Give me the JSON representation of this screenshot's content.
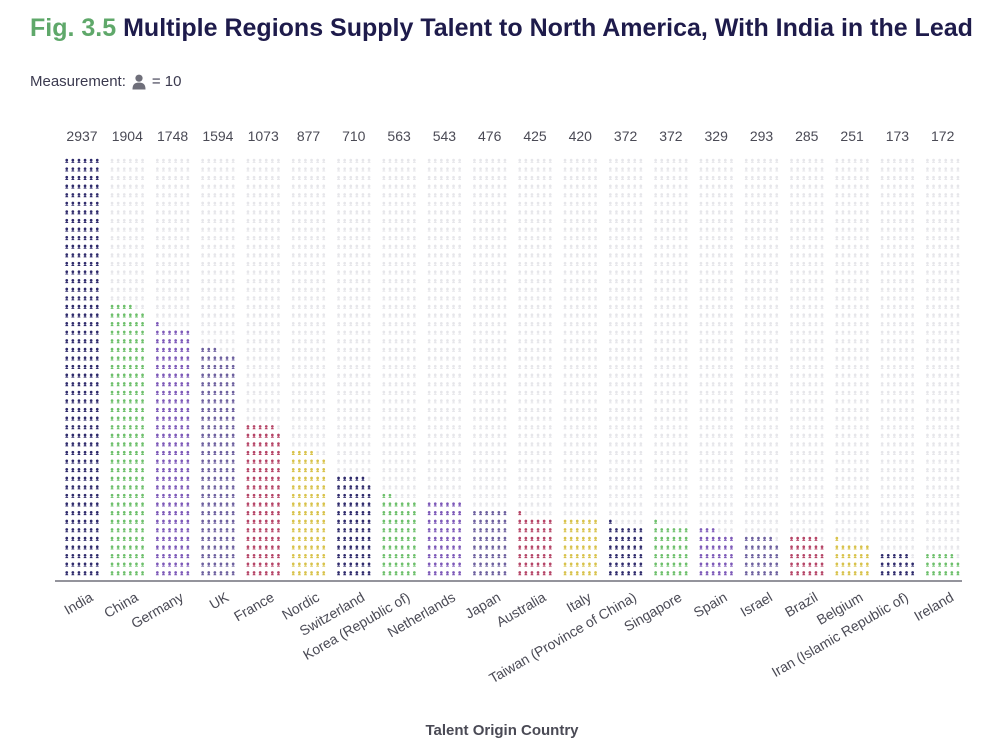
{
  "title": {
    "fig": "Fig. 3.5",
    "text": "Multiple Regions Supply Talent to North America, With India in the Lead"
  },
  "measurement": {
    "label": "Measurement:",
    "icon": "person-icon",
    "unit": "= 10"
  },
  "chart_data": {
    "type": "bar",
    "subtype": "pictograph",
    "unit_per_icon": 10,
    "xlabel": "Talent Origin Country",
    "ylabel": "",
    "grid": false,
    "categories": [
      "India",
      "China",
      "Germany",
      "UK",
      "France",
      "Nordic",
      "Switzerland",
      "Korea (Republic of)",
      "Netherlands",
      "Japan",
      "Australia",
      "Italy",
      "Taiwan (Province of China)",
      "Singapore",
      "Spain",
      "Israel",
      "Brazil",
      "Belgium",
      "Iran (Islamic Republic of)",
      "Ireland"
    ],
    "values": [
      2937,
      1904,
      1748,
      1594,
      1073,
      877,
      710,
      563,
      543,
      476,
      425,
      420,
      372,
      372,
      329,
      293,
      285,
      251,
      173,
      172
    ],
    "bar_colors": [
      "#2e2a6b",
      "#6cbf6a",
      "#7c58b8",
      "#6c5f9e",
      "#b54466",
      "#d8c24a",
      "#2e2a6b",
      "#6cbf6a",
      "#7c58b8",
      "#6c5f9e",
      "#b54466",
      "#d8c24a",
      "#2e2a6b",
      "#6cbf6a",
      "#7c58b8",
      "#6c5f9e",
      "#b54466",
      "#d8c24a",
      "#2e2a6b",
      "#6cbf6a"
    ],
    "background_icon_color": "#e6e6ea"
  }
}
